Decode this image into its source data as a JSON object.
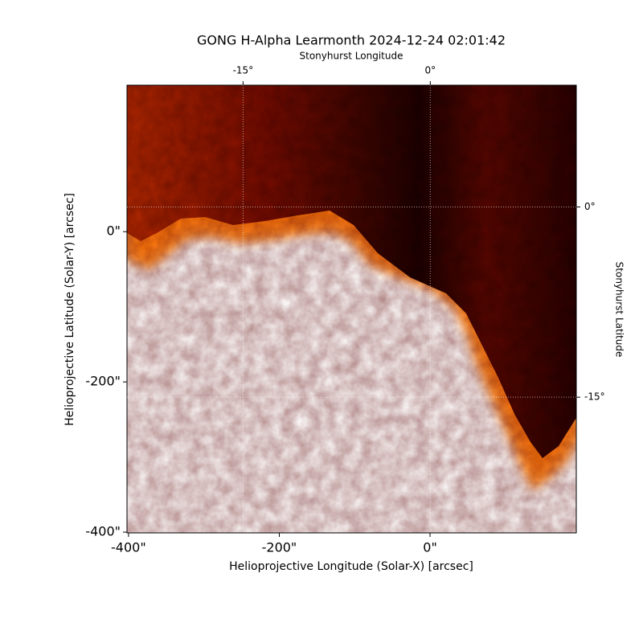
{
  "chart_data": {
    "type": "image",
    "title": "GONG H-Alpha Learmonth 2024-12-24 02:01:42",
    "x_label": "Helioprojective Longitude (Solar-X) [arcsec]",
    "y_label": "Helioprojective Latitude (Solar-Y) [arcsec]",
    "x2_label": "Stonyhurst Longitude",
    "y2_label": "Stonyhurst Latitude",
    "xlim": [
      -402,
      194
    ],
    "ylim": [
      -401,
      195
    ],
    "xticks": [
      {
        "value": -400,
        "label": "-400\""
      },
      {
        "value": -200,
        "label": "-200\""
      },
      {
        "value": 0,
        "label": "0\""
      }
    ],
    "yticks": [
      {
        "value": -400,
        "label": "-400\""
      },
      {
        "value": -200,
        "label": "-200\""
      },
      {
        "value": 0,
        "label": "0\""
      }
    ],
    "x2lim": [
      -24.3,
      11.7
    ],
    "y2lim": [
      -25.7,
      9.6
    ],
    "x2ticks": [
      {
        "value": -15,
        "label": "-15°"
      },
      {
        "value": 0,
        "label": "0°"
      }
    ],
    "y2ticks": [
      {
        "value": -15,
        "label": "-15°"
      },
      {
        "value": 0,
        "label": "0°"
      }
    ],
    "grid": true
  }
}
